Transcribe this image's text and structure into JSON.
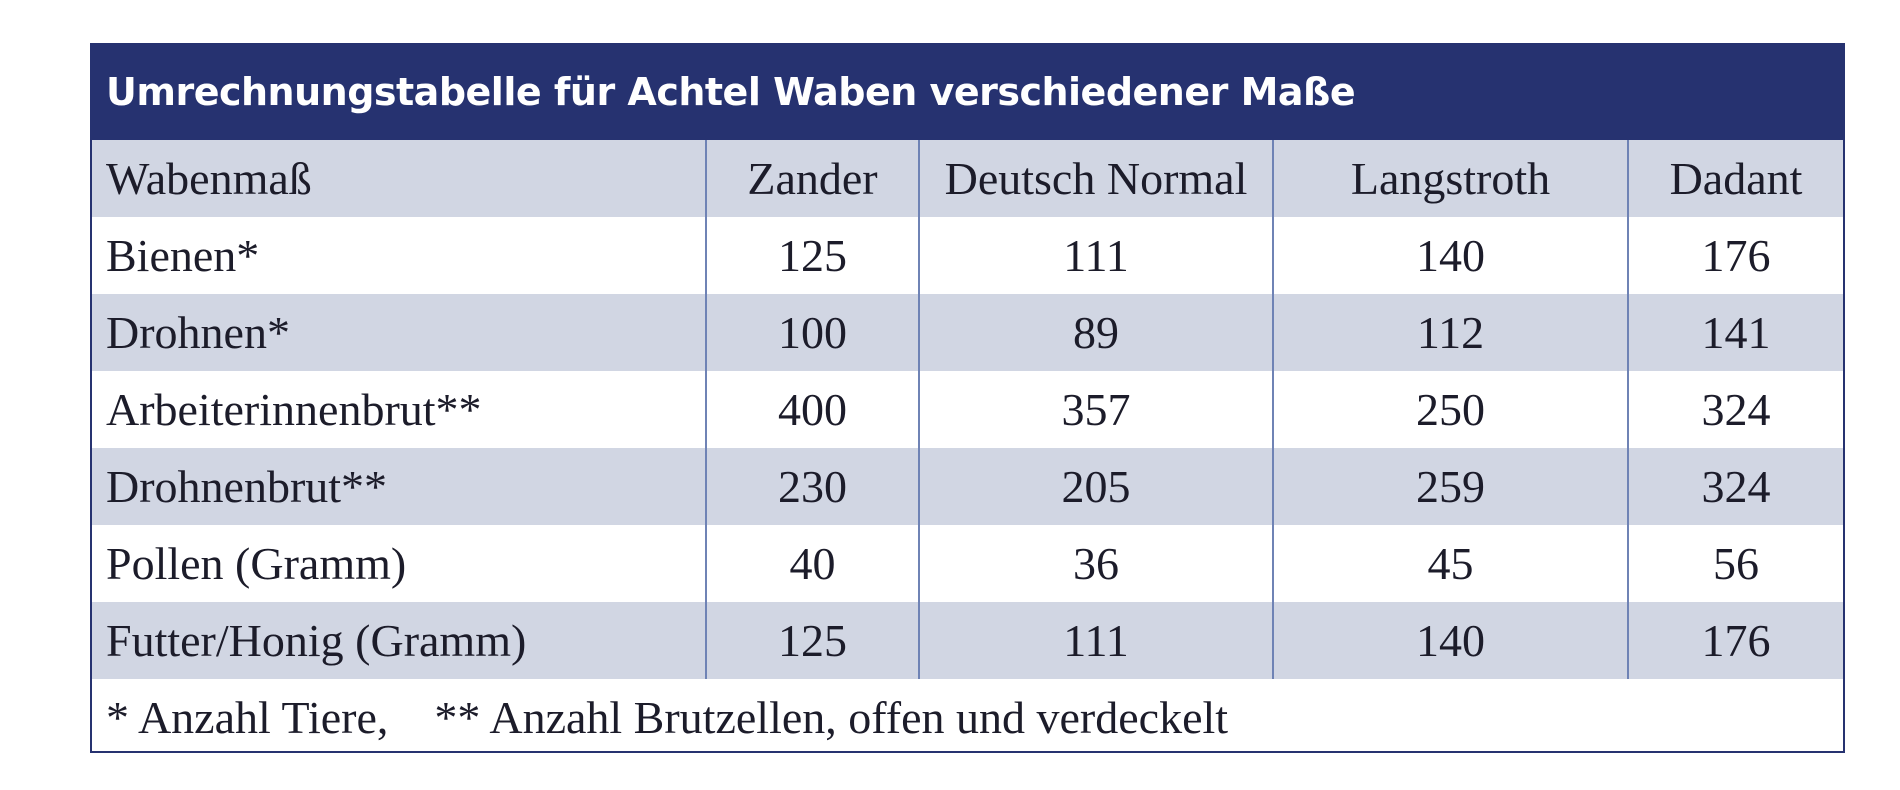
{
  "title": "Umrechnungstabelle für Achtel Waben verschiedener Maße",
  "header": {
    "label": "Wabenmaß",
    "columns": [
      "Zander",
      "Deutsch Normal",
      "Langstroth",
      "Dadant"
    ]
  },
  "rows": [
    {
      "label": "Bienen*",
      "values": [
        "125",
        "111",
        "140",
        "176"
      ]
    },
    {
      "label": "Drohnen*",
      "values": [
        "100",
        "89",
        "112",
        "141"
      ]
    },
    {
      "label": "Arbeiterinnenbrut**",
      "values": [
        "400",
        "357",
        "250",
        "324"
      ]
    },
    {
      "label": "Drohnenbrut**",
      "values": [
        "230",
        "205",
        "259",
        "324"
      ]
    },
    {
      "label": "Pollen (Gramm)",
      "values": [
        "40",
        "36",
        "45",
        "56"
      ]
    },
    {
      "label": "Futter/Honig (Gramm)",
      "values": [
        "125",
        "111",
        "140",
        "176"
      ]
    }
  ],
  "footnote": {
    "part1": "* Anzahl Tiere,",
    "part2": "** Anzahl Brutzellen, offen und verdeckelt"
  },
  "colors": {
    "title_background": "#263270",
    "shaded_row": "#d1d6e3",
    "divider": "#6f83b5"
  }
}
